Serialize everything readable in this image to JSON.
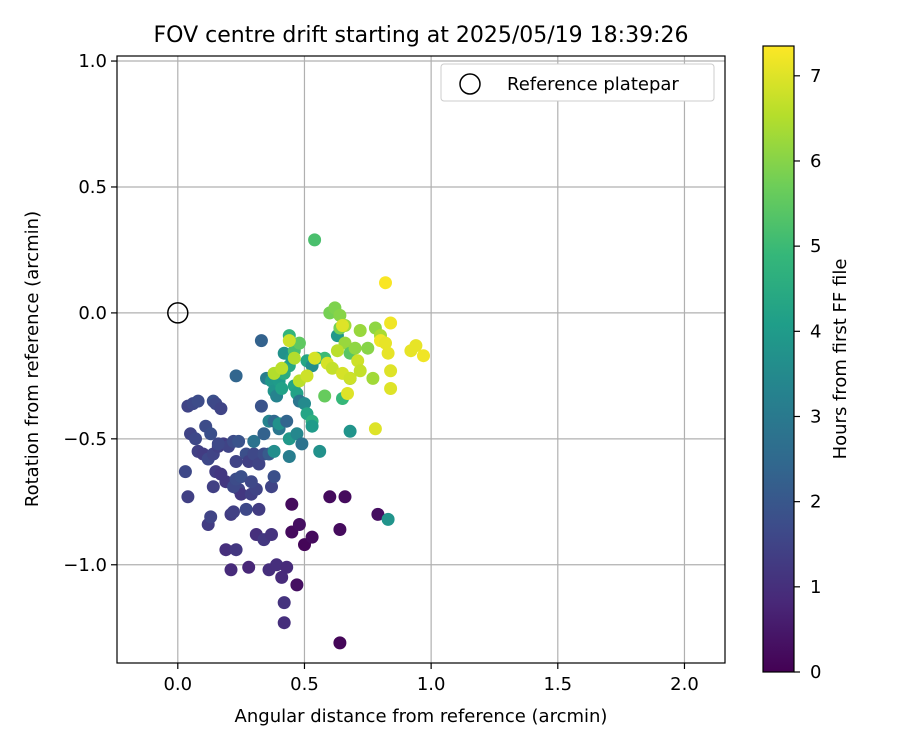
{
  "chart_data": {
    "type": "scatter",
    "title": "FOV centre drift starting at 2025/05/19 18:39:26",
    "xlabel": "Angular distance from reference (arcmin)",
    "ylabel": "Rotation from reference (arcmin)",
    "xlim": [
      -0.24,
      2.16
    ],
    "ylim": [
      -1.39,
      1.02
    ],
    "xticks": [
      0.0,
      0.5,
      1.0,
      1.5,
      2.0
    ],
    "xtick_labels": [
      "0.0",
      "0.5",
      "1.0",
      "1.5",
      "2.0"
    ],
    "yticks": [
      -1.0,
      -0.5,
      0.0,
      0.5,
      1.0
    ],
    "ytick_labels": [
      "−1.0",
      "−0.5",
      "0.0",
      "0.5",
      "1.0"
    ],
    "grid": true,
    "legend": {
      "position": "top-right",
      "entries": [
        {
          "label": "Reference platepar",
          "marker": "hollow-circle"
        }
      ]
    },
    "reference_point": {
      "x": 0.0,
      "y": 0.0
    },
    "colorbar": {
      "label": "Hours from first FF file",
      "min": 0,
      "max": 7.35,
      "ticks": [
        0,
        1,
        2,
        3,
        4,
        5,
        6,
        7
      ],
      "tick_labels": [
        "0",
        "1",
        "2",
        "3",
        "4",
        "5",
        "6",
        "7"
      ],
      "colormap": "viridis",
      "stops": [
        "#440154",
        "#482878",
        "#3e4989",
        "#31688e",
        "#26828e",
        "#1f9e89",
        "#35b779",
        "#6ece58",
        "#b5de2b",
        "#fde725"
      ]
    },
    "points": [
      [
        0.64,
        -1.31,
        0.1
      ],
      [
        0.47,
        -1.08,
        0.3
      ],
      [
        0.45,
        -0.76,
        0.2
      ],
      [
        0.5,
        -0.92,
        0.1
      ],
      [
        0.45,
        -0.87,
        0.2
      ],
      [
        0.48,
        -0.84,
        0.3
      ],
      [
        0.53,
        -0.89,
        0.2
      ],
      [
        0.6,
        -0.73,
        0.2
      ],
      [
        0.66,
        -0.73,
        0.2
      ],
      [
        0.64,
        -0.86,
        0.2
      ],
      [
        0.79,
        -0.8,
        0.3
      ],
      [
        0.42,
        -1.23,
        1.0
      ],
      [
        0.42,
        -1.15,
        1.1
      ],
      [
        0.21,
        -1.02,
        0.9
      ],
      [
        0.28,
        -1.01,
        0.8
      ],
      [
        0.36,
        -1.02,
        1.0
      ],
      [
        0.39,
        -1.0,
        1.0
      ],
      [
        0.41,
        -1.05,
        0.9
      ],
      [
        0.43,
        -1.01,
        0.9
      ],
      [
        0.19,
        -0.94,
        1.0
      ],
      [
        0.23,
        -0.94,
        1.2
      ],
      [
        0.31,
        -0.88,
        1.0
      ],
      [
        0.34,
        -0.9,
        1.2
      ],
      [
        0.37,
        -0.88,
        1.1
      ],
      [
        0.12,
        -0.84,
        1.3
      ],
      [
        0.21,
        -0.8,
        1.3
      ],
      [
        0.13,
        -0.81,
        1.5
      ],
      [
        0.22,
        -0.79,
        1.4
      ],
      [
        0.27,
        -0.78,
        1.6
      ],
      [
        0.32,
        -0.78,
        1.3
      ],
      [
        0.04,
        -0.73,
        1.4
      ],
      [
        0.14,
        -0.69,
        1.4
      ],
      [
        0.19,
        -0.67,
        1.2
      ],
      [
        0.24,
        -0.7,
        1.5
      ],
      [
        0.25,
        -0.72,
        1.2
      ],
      [
        0.29,
        -0.72,
        1.4
      ],
      [
        0.31,
        -0.7,
        1.5
      ],
      [
        0.37,
        -0.69,
        1.5
      ],
      [
        0.15,
        -0.63,
        1.3
      ],
      [
        0.17,
        -0.64,
        1.2
      ],
      [
        0.22,
        -0.69,
        1.6
      ],
      [
        0.23,
        -0.66,
        1.7
      ],
      [
        0.25,
        -0.65,
        1.8
      ],
      [
        0.29,
        -0.67,
        1.6
      ],
      [
        0.38,
        -0.65,
        1.8
      ],
      [
        0.03,
        -0.63,
        1.6
      ],
      [
        0.08,
        -0.55,
        1.4
      ],
      [
        0.1,
        -0.56,
        1.3
      ],
      [
        0.12,
        -0.58,
        1.6
      ],
      [
        0.14,
        -0.56,
        1.5
      ],
      [
        0.16,
        -0.53,
        1.4
      ],
      [
        0.18,
        -0.52,
        1.3
      ],
      [
        0.2,
        -0.53,
        1.5
      ],
      [
        0.22,
        -0.51,
        1.7
      ],
      [
        0.24,
        -0.51,
        1.9
      ],
      [
        0.27,
        -0.56,
        1.8
      ],
      [
        0.28,
        -0.59,
        1.4
      ],
      [
        0.3,
        -0.56,
        1.6
      ],
      [
        0.32,
        -0.6,
        1.5
      ],
      [
        0.34,
        -0.56,
        1.7
      ],
      [
        0.36,
        -0.56,
        2.1
      ],
      [
        0.38,
        -0.55,
        3.6
      ],
      [
        0.3,
        -0.51,
        2.8
      ],
      [
        0.23,
        -0.59,
        1.5
      ],
      [
        0.05,
        -0.48,
        1.5
      ],
      [
        0.07,
        -0.5,
        1.6
      ],
      [
        0.11,
        -0.45,
        1.7
      ],
      [
        0.13,
        -0.48,
        1.8
      ],
      [
        0.16,
        -0.52,
        1.6
      ],
      [
        0.04,
        -0.37,
        1.5
      ],
      [
        0.06,
        -0.36,
        1.6
      ],
      [
        0.08,
        -0.35,
        1.7
      ],
      [
        0.14,
        -0.35,
        1.8
      ],
      [
        0.15,
        -0.36,
        1.6
      ],
      [
        0.17,
        -0.38,
        1.5
      ],
      [
        0.33,
        -0.37,
        1.9
      ],
      [
        0.34,
        -0.48,
        2.3
      ],
      [
        0.36,
        -0.43,
        3.3
      ],
      [
        0.38,
        -0.43,
        2.5
      ],
      [
        0.4,
        -0.46,
        2.9
      ],
      [
        0.4,
        -0.44,
        3.7
      ],
      [
        0.43,
        -0.43,
        2.4
      ],
      [
        0.44,
        -0.5,
        3.9
      ],
      [
        0.44,
        -0.57,
        3.1
      ],
      [
        0.47,
        -0.48,
        3.4
      ],
      [
        0.49,
        -0.52,
        2.8
      ],
      [
        0.56,
        -0.55,
        3.7
      ],
      [
        0.68,
        -0.47,
        3.8
      ],
      [
        0.83,
        -0.82,
        3.8
      ],
      [
        0.23,
        -0.25,
        2.4
      ],
      [
        0.33,
        -0.11,
        2.3
      ],
      [
        0.35,
        -0.26,
        3.1
      ],
      [
        0.37,
        -0.27,
        3.9
      ],
      [
        0.38,
        -0.31,
        3.8
      ],
      [
        0.39,
        -0.33,
        3.3
      ],
      [
        0.4,
        -0.27,
        4.0
      ],
      [
        0.41,
        -0.3,
        4.2
      ],
      [
        0.42,
        -0.24,
        4.5
      ],
      [
        0.42,
        -0.16,
        3.7
      ],
      [
        0.44,
        -0.21,
        4.4
      ],
      [
        0.45,
        -0.18,
        4.0
      ],
      [
        0.46,
        -0.29,
        4.3
      ],
      [
        0.47,
        -0.32,
        4.2
      ],
      [
        0.48,
        -0.35,
        2.9
      ],
      [
        0.5,
        -0.36,
        3.5
      ],
      [
        0.51,
        -0.4,
        4.3
      ],
      [
        0.53,
        -0.43,
        4.6
      ],
      [
        0.53,
        -0.45,
        4.0
      ],
      [
        0.44,
        -0.09,
        4.8
      ],
      [
        0.46,
        -0.15,
        5.2
      ],
      [
        0.48,
        -0.12,
        5.5
      ],
      [
        0.51,
        -0.19,
        4.3
      ],
      [
        0.53,
        -0.21,
        3.6
      ],
      [
        0.55,
        -0.18,
        4.8
      ],
      [
        0.58,
        -0.18,
        5.0
      ],
      [
        0.63,
        -0.09,
        3.9
      ],
      [
        0.64,
        -0.06,
        5.8
      ],
      [
        0.66,
        -0.12,
        6.2
      ],
      [
        0.68,
        -0.16,
        5.4
      ],
      [
        0.68,
        -0.26,
        4.0
      ],
      [
        0.65,
        -0.34,
        4.9
      ],
      [
        0.54,
        0.29,
        5.2
      ],
      [
        0.58,
        -0.33,
        5.6
      ],
      [
        0.6,
        0.0,
        5.8
      ],
      [
        0.62,
        0.02,
        5.9
      ],
      [
        0.64,
        -0.01,
        6.0
      ],
      [
        0.66,
        -0.05,
        6.3
      ],
      [
        0.7,
        -0.14,
        6.1
      ],
      [
        0.72,
        -0.07,
        6.2
      ],
      [
        0.75,
        -0.14,
        6.0
      ],
      [
        0.77,
        -0.26,
        6.3
      ],
      [
        0.78,
        -0.06,
        6.1
      ],
      [
        0.8,
        -0.09,
        6.4
      ],
      [
        0.38,
        -0.24,
        6.5
      ],
      [
        0.41,
        -0.22,
        6.6
      ],
      [
        0.44,
        -0.11,
        6.8
      ],
      [
        0.46,
        -0.18,
        6.5
      ],
      [
        0.48,
        -0.27,
        6.6
      ],
      [
        0.51,
        -0.25,
        6.8
      ],
      [
        0.54,
        -0.18,
        6.9
      ],
      [
        0.59,
        -0.2,
        6.9
      ],
      [
        0.61,
        -0.22,
        6.7
      ],
      [
        0.63,
        -0.15,
        6.6
      ],
      [
        0.65,
        -0.05,
        7.0
      ],
      [
        0.65,
        -0.24,
        6.9
      ],
      [
        0.67,
        -0.32,
        7.0
      ],
      [
        0.68,
        -0.26,
        6.8
      ],
      [
        0.71,
        -0.19,
        6.8
      ],
      [
        0.72,
        -0.23,
        6.7
      ],
      [
        0.78,
        -0.46,
        7.0
      ],
      [
        0.8,
        -0.11,
        7.2
      ],
      [
        0.82,
        -0.12,
        7.1
      ],
      [
        0.82,
        0.12,
        7.3
      ],
      [
        0.83,
        -0.16,
        7.1
      ],
      [
        0.84,
        -0.04,
        7.2
      ],
      [
        0.84,
        -0.23,
        7.0
      ],
      [
        0.84,
        -0.3,
        7.0
      ],
      [
        0.92,
        -0.15,
        7.1
      ],
      [
        0.94,
        -0.13,
        7.1
      ],
      [
        0.97,
        -0.17,
        7.2
      ]
    ]
  }
}
